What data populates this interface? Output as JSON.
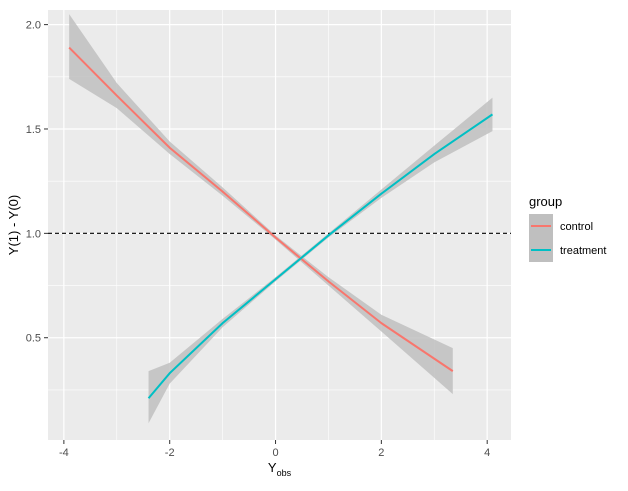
{
  "chart_data": {
    "type": "line",
    "title": "",
    "xlabel": "Y",
    "xlabel_subscript": "obs",
    "ylabel": "Y(1) - Y(0)",
    "xlim": [
      -4.3,
      4.45
    ],
    "ylim": [
      0.01,
      2.07
    ],
    "x_ticks": [
      -4,
      -2,
      0,
      2,
      4
    ],
    "x_tick_labels": [
      "-4",
      "-2",
      "0",
      "2",
      "4"
    ],
    "y_ticks": [
      0.5,
      1.0,
      1.5,
      2.0
    ],
    "y_tick_labels": [
      "0.5",
      "1.0",
      "1.5",
      "2.0"
    ],
    "grid": true,
    "reference_line": {
      "y": 1.0,
      "style": "dashed",
      "color": "#000000"
    },
    "legend": {
      "title": "group",
      "position": "right"
    },
    "panel_background": "#ebebeb",
    "ribbon_color": "#bfbfbf",
    "series": [
      {
        "name": "control",
        "color": "#F8766D",
        "x": [
          -3.9,
          -3.0,
          -2.0,
          -1.0,
          0.0,
          1.0,
          2.0,
          3.35
        ],
        "y": [
          1.89,
          1.66,
          1.41,
          1.2,
          0.98,
          0.77,
          0.57,
          0.34
        ],
        "lower": [
          1.74,
          1.6,
          1.38,
          1.18,
          0.97,
          0.75,
          0.53,
          0.23
        ],
        "upper": [
          2.05,
          1.72,
          1.44,
          1.22,
          0.99,
          0.79,
          0.61,
          0.45
        ]
      },
      {
        "name": "treatment",
        "color": "#00BFC4",
        "x": [
          -2.4,
          -2.0,
          -1.0,
          0.0,
          1.0,
          2.0,
          3.0,
          4.1
        ],
        "y": [
          0.21,
          0.33,
          0.57,
          0.78,
          0.99,
          1.19,
          1.38,
          1.57
        ],
        "lower": [
          0.09,
          0.28,
          0.55,
          0.77,
          0.98,
          1.17,
          1.34,
          1.49
        ],
        "upper": [
          0.34,
          0.38,
          0.59,
          0.79,
          1.0,
          1.21,
          1.42,
          1.65
        ]
      }
    ]
  }
}
